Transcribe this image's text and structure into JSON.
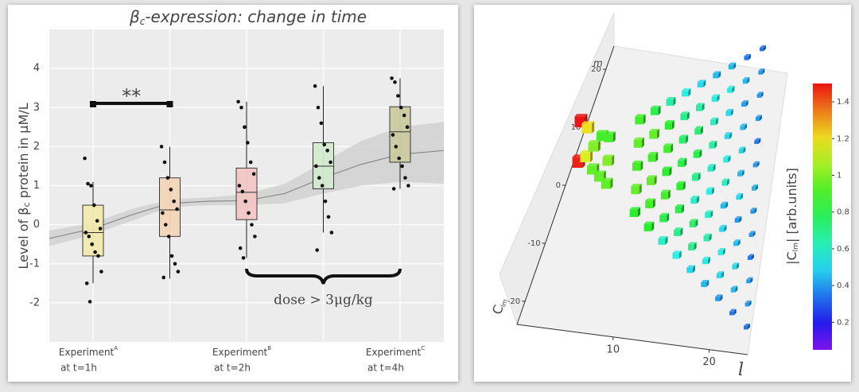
{
  "chart_data": [
    {
      "type": "box",
      "title": "β",
      "title_sub": "c",
      "title_rest": "-expression: change in time",
      "ylabel": "Level of β",
      "ylabel_sub": "c",
      "ylabel_rest": " protein in μM/L",
      "categories": [
        {
          "name": "Experiment",
          "sup": "A",
          "time": "at t=1h"
        },
        null,
        {
          "name": "Experiment",
          "sup": "B",
          "time": "at t=2h"
        },
        null,
        {
          "name": "Experiment",
          "sup": "C",
          "time": "at t=4h"
        }
      ],
      "xlim": [
        -0.57,
        4.57
      ],
      "ylim": [
        -3,
        5
      ],
      "yticks": [
        -2,
        -1,
        0,
        1,
        2,
        3,
        4
      ],
      "grid": true,
      "boxes": [
        {
          "low": -1.5,
          "q1": -0.8,
          "median": -0.2,
          "q3": 0.5,
          "high": 1.1,
          "color": "#f3eab0",
          "points": [
            1.7,
            1.05,
            1.0,
            0.5,
            0.1,
            -0.1,
            -0.2,
            -0.3,
            -0.5,
            -0.7,
            -0.8,
            -1.2,
            -1.5,
            -1.97
          ]
        },
        {
          "low": -1.38,
          "q1": -0.3,
          "median": 0.38,
          "q3": 1.2,
          "high": 2.0,
          "color": "#f5d6b9",
          "points": [
            2.0,
            1.6,
            1.2,
            0.9,
            0.6,
            0.4,
            0.3,
            0.0,
            -0.3,
            -0.8,
            -1.0,
            -1.2,
            -1.35
          ]
        },
        {
          "low": -0.85,
          "q1": 0.13,
          "median": 0.83,
          "q3": 1.45,
          "high": 3.15,
          "color": "#f4c8c6",
          "points": [
            3.15,
            3.0,
            2.5,
            2.1,
            1.6,
            1.3,
            1.0,
            0.85,
            0.6,
            0.3,
            0.0,
            -0.3,
            -0.6,
            -0.85
          ]
        },
        {
          "low": -0.2,
          "q1": 0.92,
          "median": 1.5,
          "q3": 2.1,
          "high": 3.55,
          "color": "#d3ebcf",
          "points": [
            3.55,
            3.0,
            2.6,
            2.05,
            1.9,
            1.6,
            1.5,
            1.2,
            1.0,
            0.6,
            0.2,
            -0.2,
            -0.65
          ]
        },
        {
          "low": 0.92,
          "q1": 1.6,
          "median": 2.38,
          "q3": 3.02,
          "high": 3.75,
          "color": "#cbcba2",
          "points": [
            3.75,
            3.65,
            3.3,
            3.0,
            2.8,
            2.5,
            2.3,
            2.0,
            1.7,
            1.5,
            1.2,
            1.0,
            0.92
          ]
        }
      ],
      "trend": {
        "color": "#8a8a8a",
        "x": [
          -0.57,
          0,
          0.5,
          1,
          1.5,
          2,
          2.5,
          3,
          3.5,
          4,
          4.57
        ],
        "values": [
          -0.35,
          -0.1,
          0.25,
          0.55,
          0.6,
          0.62,
          0.8,
          1.2,
          1.55,
          1.8,
          1.9
        ],
        "lower": [
          -0.55,
          -0.25,
          0.1,
          0.45,
          0.5,
          0.5,
          0.55,
          0.8,
          1.0,
          1.1,
          1.05
        ],
        "upper": [
          -0.15,
          0.05,
          0.4,
          0.65,
          0.7,
          0.78,
          1.05,
          1.6,
          2.15,
          2.5,
          2.63
        ]
      },
      "annotations": {
        "significance": "**",
        "dose": "dose > 3μg/kg"
      }
    },
    {
      "type": "bar3d",
      "xlabel": "l",
      "ylabel": "m",
      "zlabel": "C",
      "zlabel_sub": "lm",
      "xlim": [
        0,
        24
      ],
      "ylim": [
        -24,
        24
      ],
      "xticks": [
        10,
        20
      ],
      "yticks": [
        -20,
        -10,
        0,
        10,
        20
      ],
      "colorbar_label": "|C",
      "colorbar_sub": "lm",
      "colorbar_rest": "| [arb.units]",
      "clim": [
        0.05,
        1.5
      ],
      "cticks": [
        0.2,
        0.4,
        0.6,
        0.8,
        1,
        1.2,
        1.4
      ],
      "l": [
        0,
        1,
        0,
        1,
        2,
        2,
        3,
        3,
        4,
        4,
        4,
        8,
        8,
        8,
        8,
        8,
        10,
        10,
        10,
        10,
        10,
        10,
        12,
        12,
        12,
        12,
        12,
        12,
        12,
        14,
        14,
        14,
        14,
        14,
        14,
        14,
        14,
        16,
        16,
        16,
        16,
        16,
        16,
        16,
        16,
        16,
        18,
        18,
        18,
        18,
        18,
        18,
        18,
        18,
        18,
        18,
        20,
        20,
        20,
        20,
        20,
        20,
        20,
        20,
        20,
        20,
        20,
        22,
        22,
        22,
        22,
        22,
        22,
        22,
        22,
        22,
        22,
        22,
        22,
        24,
        24,
        24,
        24,
        24,
        24,
        24,
        24,
        24,
        24,
        24,
        24,
        24
      ],
      "m": [
        6,
        5,
        -1,
        0,
        2,
        -2,
        4,
        -3,
        -4,
        0,
        4,
        -8,
        -4,
        0,
        4,
        8,
        -10,
        -6,
        -2,
        2,
        6,
        10,
        -12,
        -8,
        -4,
        0,
        4,
        8,
        12,
        -14,
        -10,
        -6,
        -2,
        2,
        6,
        10,
        14,
        -16,
        -12,
        -8,
        -4,
        0,
        4,
        8,
        12,
        16,
        -18,
        -14,
        -10,
        -6,
        -2,
        2,
        6,
        10,
        14,
        18,
        -20,
        -16,
        -12,
        -8,
        -4,
        0,
        4,
        8,
        12,
        16,
        20,
        -22,
        -18,
        -14,
        -10,
        -6,
        -2,
        2,
        6,
        10,
        14,
        18,
        22,
        -24,
        -20,
        -16,
        -12,
        -8,
        -4,
        0,
        4,
        8,
        12,
        16,
        20,
        24
      ],
      "values": [
        1.5,
        1.2,
        1.48,
        1.15,
        1.0,
        0.95,
        0.9,
        0.95,
        0.95,
        1.0,
        0.9,
        0.85,
        0.95,
        0.9,
        0.95,
        0.9,
        0.85,
        0.9,
        0.95,
        0.9,
        0.95,
        0.8,
        0.6,
        0.8,
        0.9,
        0.85,
        0.9,
        0.85,
        0.65,
        0.55,
        0.7,
        0.8,
        0.85,
        0.8,
        0.75,
        0.7,
        0.55,
        0.5,
        0.7,
        0.75,
        0.6,
        0.7,
        0.8,
        0.75,
        0.65,
        0.5,
        0.45,
        0.55,
        0.65,
        0.6,
        0.55,
        0.6,
        0.65,
        0.6,
        0.55,
        0.45,
        0.4,
        0.5,
        0.55,
        0.5,
        0.45,
        0.6,
        0.55,
        0.5,
        0.5,
        0.55,
        0.45,
        0.35,
        0.45,
        0.5,
        0.45,
        0.4,
        0.5,
        0.45,
        0.5,
        0.45,
        0.4,
        0.45,
        0.35,
        0.35,
        0.4,
        0.4,
        0.35,
        0.4,
        0.4,
        0.45,
        0.4,
        0.35,
        0.4,
        0.4,
        0.4,
        0.35
      ]
    }
  ]
}
